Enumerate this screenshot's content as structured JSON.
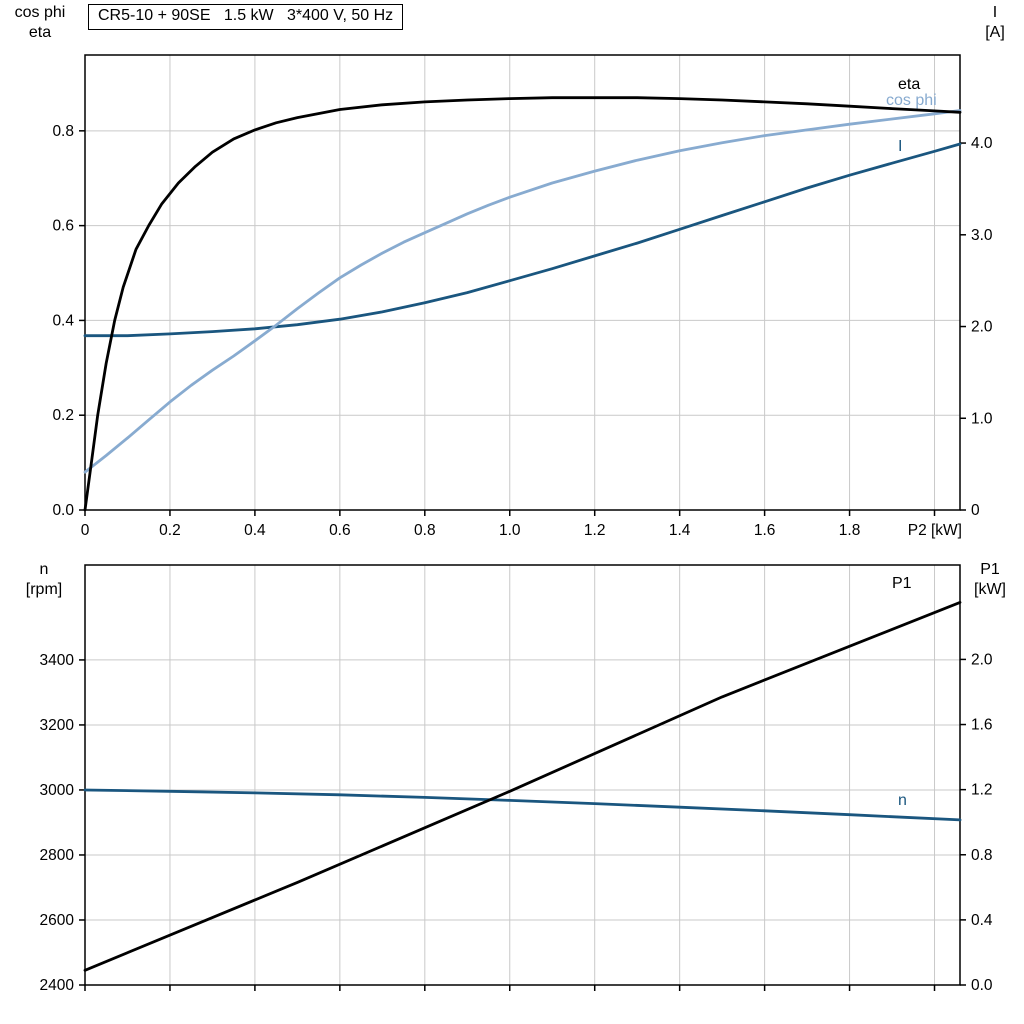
{
  "title_box": {
    "text": "CR5-10 + 90SE   1.5 kW   3*400 V, 50 Hz"
  },
  "colors": {
    "grid": "#c9c9c9",
    "axis": "#000000",
    "black": "#000000",
    "light_blue": "#88abd0",
    "dark_blue": "#1a567f"
  },
  "corner_labels": {
    "top_left": [
      "cos phi",
      "eta"
    ],
    "top_right": [
      "I",
      "[A]"
    ],
    "bottom_left": [
      "n",
      "[rpm]"
    ],
    "bottom_right": [
      "P1",
      "[kW]"
    ]
  },
  "chart_data": [
    {
      "type": "line",
      "title": "CR5-10 + 90SE   1.5 kW   3*400 V, 50 Hz",
      "x_axis": {
        "label": "P2 [kW]",
        "range": [
          0,
          2.06
        ],
        "tick_values": [
          0,
          0.2,
          0.4,
          0.6,
          0.8,
          1.0,
          1.2,
          1.4,
          1.6,
          1.8,
          2.0
        ],
        "tick_labels": [
          "0",
          "0.2",
          "0.4",
          "0.6",
          "0.8",
          "1.0",
          "1.2",
          "1.4",
          "1.6",
          "1.8",
          ""
        ]
      },
      "y_left": {
        "label": "cos phi / eta",
        "range": [
          0,
          0.96
        ],
        "tick_values": [
          0,
          0.2,
          0.4,
          0.6,
          0.8
        ],
        "tick_labels": [
          "0.0",
          "0.2",
          "0.4",
          "0.6",
          "0.8"
        ],
        "grid": true
      },
      "y_right": {
        "label": "I [A]",
        "range": [
          0,
          4.96
        ],
        "tick_values": [
          0,
          1.0,
          2.0,
          3.0,
          4.0
        ],
        "tick_labels": [
          "0",
          "1.0",
          "2.0",
          "3.0",
          "4.0"
        ],
        "grid": false
      },
      "series": [
        {
          "name": "I",
          "axis": "right",
          "color": "#1a567f",
          "points": [
            [
              0,
              1.9
            ],
            [
              0.1,
              1.9
            ],
            [
              0.2,
              1.92
            ],
            [
              0.3,
              1.945
            ],
            [
              0.4,
              1.975
            ],
            [
              0.5,
              2.02
            ],
            [
              0.6,
              2.08
            ],
            [
              0.7,
              2.16
            ],
            [
              0.8,
              2.26
            ],
            [
              0.9,
              2.37
            ],
            [
              1.0,
              2.5
            ],
            [
              1.1,
              2.63
            ],
            [
              1.2,
              2.77
            ],
            [
              1.3,
              2.91
            ],
            [
              1.4,
              3.06
            ],
            [
              1.5,
              3.21
            ],
            [
              1.6,
              3.36
            ],
            [
              1.7,
              3.51
            ],
            [
              1.8,
              3.65
            ],
            [
              1.9,
              3.78
            ],
            [
              2.0,
              3.91
            ],
            [
              2.06,
              3.99
            ]
          ]
        },
        {
          "name": "cos phi",
          "axis": "left",
          "color": "#88abd0",
          "points": [
            [
              0,
              0.08
            ],
            [
              0.05,
              0.115
            ],
            [
              0.1,
              0.152
            ],
            [
              0.15,
              0.19
            ],
            [
              0.2,
              0.228
            ],
            [
              0.25,
              0.263
            ],
            [
              0.3,
              0.295
            ],
            [
              0.35,
              0.325
            ],
            [
              0.4,
              0.357
            ],
            [
              0.45,
              0.39
            ],
            [
              0.5,
              0.425
            ],
            [
              0.55,
              0.458
            ],
            [
              0.6,
              0.49
            ],
            [
              0.65,
              0.517
            ],
            [
              0.7,
              0.542
            ],
            [
              0.75,
              0.565
            ],
            [
              0.8,
              0.585
            ],
            [
              0.85,
              0.605
            ],
            [
              0.9,
              0.625
            ],
            [
              0.95,
              0.643
            ],
            [
              1.0,
              0.66
            ],
            [
              1.1,
              0.69
            ],
            [
              1.2,
              0.715
            ],
            [
              1.3,
              0.738
            ],
            [
              1.4,
              0.758
            ],
            [
              1.5,
              0.775
            ],
            [
              1.6,
              0.79
            ],
            [
              1.7,
              0.802
            ],
            [
              1.8,
              0.814
            ],
            [
              1.9,
              0.825
            ],
            [
              2.0,
              0.836
            ],
            [
              2.06,
              0.843
            ]
          ]
        },
        {
          "name": "eta",
          "axis": "left",
          "color": "#000000",
          "points": [
            [
              0,
              0
            ],
            [
              0.015,
              0.1
            ],
            [
              0.03,
              0.2
            ],
            [
              0.05,
              0.31
            ],
            [
              0.07,
              0.4
            ],
            [
              0.09,
              0.47
            ],
            [
              0.12,
              0.55
            ],
            [
              0.15,
              0.6
            ],
            [
              0.18,
              0.645
            ],
            [
              0.22,
              0.69
            ],
            [
              0.26,
              0.725
            ],
            [
              0.3,
              0.755
            ],
            [
              0.35,
              0.783
            ],
            [
              0.4,
              0.802
            ],
            [
              0.45,
              0.817
            ],
            [
              0.5,
              0.828
            ],
            [
              0.6,
              0.845
            ],
            [
              0.7,
              0.855
            ],
            [
              0.8,
              0.861
            ],
            [
              0.9,
              0.865
            ],
            [
              1.0,
              0.868
            ],
            [
              1.1,
              0.87
            ],
            [
              1.2,
              0.87
            ],
            [
              1.3,
              0.87
            ],
            [
              1.4,
              0.868
            ],
            [
              1.5,
              0.865
            ],
            [
              1.6,
              0.861
            ],
            [
              1.7,
              0.857
            ],
            [
              1.8,
              0.852
            ],
            [
              1.9,
              0.847
            ],
            [
              2.0,
              0.842
            ],
            [
              2.06,
              0.839
            ]
          ]
        }
      ]
    },
    {
      "type": "line",
      "x_axis": {
        "label": "",
        "range": [
          0,
          2.06
        ],
        "tick_values": [
          0,
          0.2,
          0.4,
          0.6,
          0.8,
          1.0,
          1.2,
          1.4,
          1.6,
          1.8,
          2.0
        ],
        "tick_labels": [
          "",
          "",
          "",
          "",
          "",
          "",
          "",
          "",
          "",
          "",
          ""
        ]
      },
      "y_left": {
        "label": "n [rpm]",
        "range": [
          2400,
          3692
        ],
        "tick_values": [
          2400,
          2600,
          2800,
          3000,
          3200,
          3400
        ],
        "tick_labels": [
          "2400",
          "2600",
          "2800",
          "3000",
          "3200",
          "3400"
        ],
        "grid": true
      },
      "y_right": {
        "label": "P1 [kW]",
        "range": [
          0,
          2.58
        ],
        "tick_values": [
          0,
          0.4,
          0.8,
          1.2,
          1.6,
          2.0
        ],
        "tick_labels": [
          "0.0",
          "0.4",
          "0.8",
          "1.2",
          "1.6",
          "2.0"
        ],
        "grid": false
      },
      "series": [
        {
          "name": "n",
          "axis": "left",
          "color": "#1a567f",
          "points": [
            [
              0,
              3000
            ],
            [
              0.2,
              2996
            ],
            [
              0.4,
              2991
            ],
            [
              0.6,
              2985
            ],
            [
              0.8,
              2977
            ],
            [
              1.0,
              2968
            ],
            [
              1.2,
              2958
            ],
            [
              1.4,
              2947
            ],
            [
              1.6,
              2936
            ],
            [
              1.8,
              2924
            ],
            [
              1.93,
              2916
            ],
            [
              2.06,
              2908
            ]
          ]
        },
        {
          "name": "P1",
          "axis": "right",
          "color": "#000000",
          "points": [
            [
              0,
              0.09
            ],
            [
              0.5,
              0.63
            ],
            [
              1.0,
              1.19
            ],
            [
              1.5,
              1.77
            ],
            [
              2.06,
              2.35
            ]
          ]
        }
      ]
    }
  ]
}
